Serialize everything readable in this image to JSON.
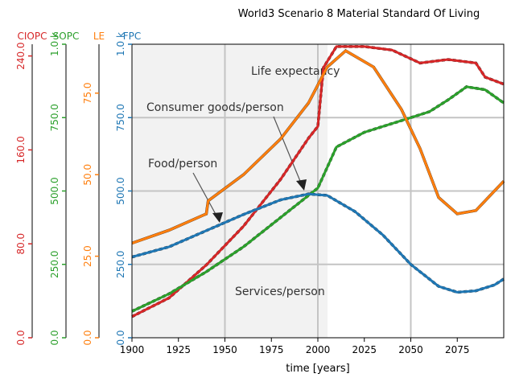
{
  "chart_data": {
    "type": "line",
    "title": "World3 Scenario 8 Material Standard Of Living",
    "xlabel": "time [years]",
    "xlim": [
      1900,
      2100
    ],
    "xticks": [
      "1900",
      "1925",
      "1950",
      "1975",
      "2000",
      "2025",
      "2050",
      "2075"
    ],
    "grid": true,
    "background_image_annotations": {
      "life_expectancy": "Life expectancy",
      "consumer_goods": "Consumer goods/person",
      "food": "Food/person",
      "services": "Services/person"
    },
    "axes": [
      {
        "name": "CIOPC",
        "color": "#d62728",
        "ylim": [
          0,
          250
        ],
        "ticks": [
          "0.0",
          "80.0",
          "160.0",
          "240.0"
        ],
        "tick_values": [
          0,
          80,
          160,
          240
        ]
      },
      {
        "name": "SOPC",
        "color": "#2ca02c",
        "ylim": [
          0,
          1000
        ],
        "ticks": [
          "0.0",
          "250.0",
          "500.0",
          "750.0",
          "1.0 k"
        ],
        "tick_values": [
          0,
          250,
          500,
          750,
          1000
        ]
      },
      {
        "name": "LE",
        "color": "#ff7f0e",
        "ylim": [
          0,
          90
        ],
        "ticks": [
          "0.0",
          "25.0",
          "50.0",
          "75.0"
        ],
        "tick_values": [
          0,
          25,
          50,
          75
        ]
      },
      {
        "name": "FPC",
        "color": "#1f77b4",
        "ylim": [
          0,
          1000
        ],
        "ticks": [
          "0.0",
          "250.0",
          "500.0",
          "750.0",
          "1.0 k"
        ],
        "tick_values": [
          0,
          250,
          500,
          750,
          1000
        ]
      }
    ],
    "series": [
      {
        "name": "CIOPC",
        "axis": 0,
        "color": "#d62728",
        "x": [
          1900,
          1920,
          1940,
          1960,
          1980,
          1995,
          2000,
          2003,
          2010,
          2025,
          2040,
          2055,
          2070,
          2085,
          2090,
          2100
        ],
        "y": [
          18,
          34,
          62,
          95,
          135,
          170,
          180,
          230,
          248,
          248,
          245,
          234,
          237,
          234,
          222,
          216
        ]
      },
      {
        "name": "SOPC",
        "axis": 1,
        "color": "#2ca02c",
        "x": [
          1900,
          1920,
          1940,
          1960,
          1980,
          1995,
          2000,
          2010,
          2025,
          2040,
          2060,
          2070,
          2080,
          2090,
          2100
        ],
        "y": [
          90,
          150,
          225,
          310,
          410,
          485,
          510,
          650,
          700,
          730,
          770,
          810,
          855,
          845,
          800
        ]
      },
      {
        "name": "LE",
        "axis": 2,
        "color": "#ff7f0e",
        "x": [
          1900,
          1920,
          1940,
          1941,
          1960,
          1980,
          1995,
          2005,
          2015,
          2030,
          2045,
          2055,
          2065,
          2075,
          2085,
          2100
        ],
        "y": [
          29,
          33,
          38,
          42,
          50,
          61,
          72,
          83,
          88,
          83,
          70,
          58,
          43,
          38,
          39,
          48
        ]
      },
      {
        "name": "FPC",
        "axis": 3,
        "color": "#1f77b4",
        "x": [
          1900,
          1920,
          1940,
          1960,
          1980,
          1995,
          2005,
          2020,
          2035,
          2050,
          2065,
          2075,
          2085,
          2095,
          2100
        ],
        "y": [
          275,
          310,
          365,
          420,
          470,
          490,
          485,
          430,
          350,
          250,
          175,
          155,
          160,
          180,
          200
        ]
      }
    ]
  }
}
